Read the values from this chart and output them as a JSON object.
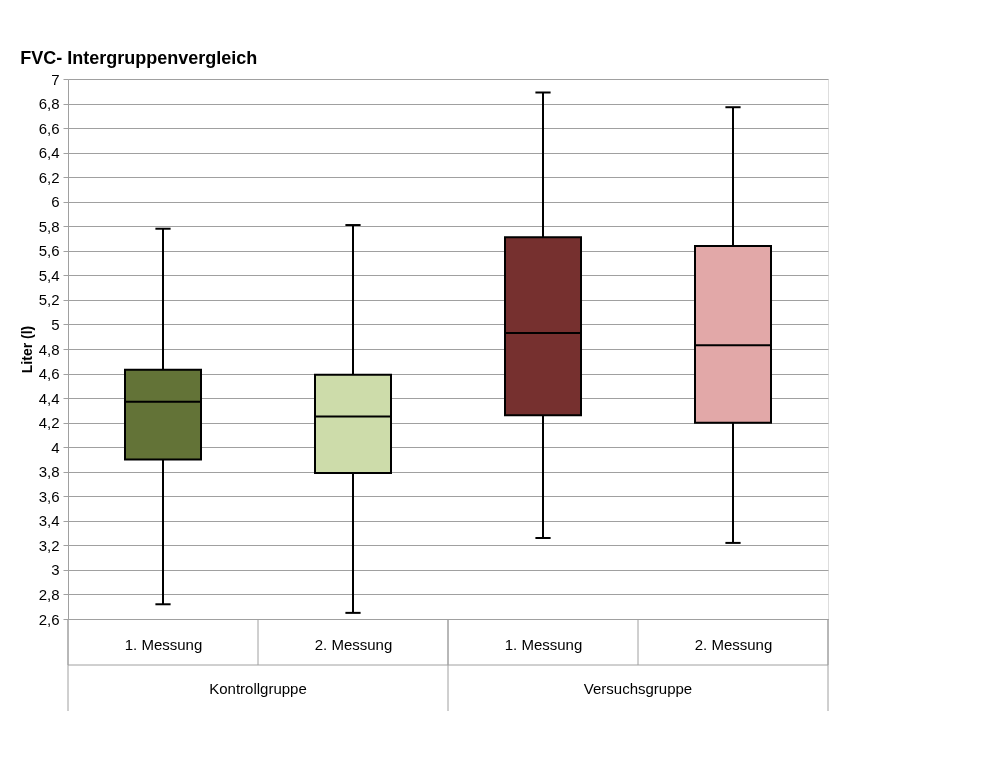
{
  "chart_data": {
    "type": "box",
    "title": "FVC- Intergruppenvergleich",
    "ylabel": "Liter (l)",
    "categories": [
      "1. Messung",
      "2. Messung",
      "1. Messung",
      "2. Messung"
    ],
    "boxes": [
      {
        "low": 2.72,
        "q1": 3.9,
        "median": 4.37,
        "q3": 4.63,
        "high": 5.78
      },
      {
        "low": 2.65,
        "q1": 3.79,
        "median": 4.25,
        "q3": 4.59,
        "high": 5.81
      },
      {
        "low": 3.26,
        "q1": 4.26,
        "median": 4.93,
        "q3": 5.71,
        "high": 6.89
      },
      {
        "low": 3.22,
        "q1": 4.2,
        "median": 4.83,
        "q3": 5.64,
        "high": 6.77
      }
    ],
    "colors": [
      "#637337",
      "#cddcaa",
      "#76302f",
      "#e2a8a8"
    ],
    "ylim": [
      2.6,
      7
    ],
    "yticks": [
      {
        "value": 2.6,
        "label": "2,6"
      },
      {
        "value": 2.8,
        "label": "2,8"
      },
      3,
      {
        "value": 3.2,
        "label": "3,2"
      },
      {
        "value": 3.4,
        "label": "3,4"
      },
      {
        "value": 3.6,
        "label": "3,6"
      },
      {
        "value": 3.8,
        "label": "3,8"
      },
      4,
      {
        "value": 4.2,
        "label": "4,2"
      },
      {
        "value": 4.4,
        "label": "4,4"
      },
      {
        "value": 4.6,
        "label": "4,6"
      },
      {
        "value": 4.8,
        "label": "4,8"
      },
      5,
      {
        "value": 5.2,
        "label": "5,2"
      },
      {
        "value": 5.4,
        "label": "5,4"
      },
      {
        "value": 5.6,
        "label": "5,6"
      },
      {
        "value": 5.8,
        "label": "5,8"
      },
      6,
      {
        "value": 6.2,
        "label": "6,2"
      },
      {
        "value": 6.4,
        "label": "6,4"
      },
      {
        "value": 6.6,
        "label": "6,6"
      },
      {
        "value": 6.8,
        "label": "6,8"
      },
      7
    ],
    "grid": "y",
    "annotations": [
      "Kontrollgruppe",
      "Versuchsgruppe"
    ]
  }
}
